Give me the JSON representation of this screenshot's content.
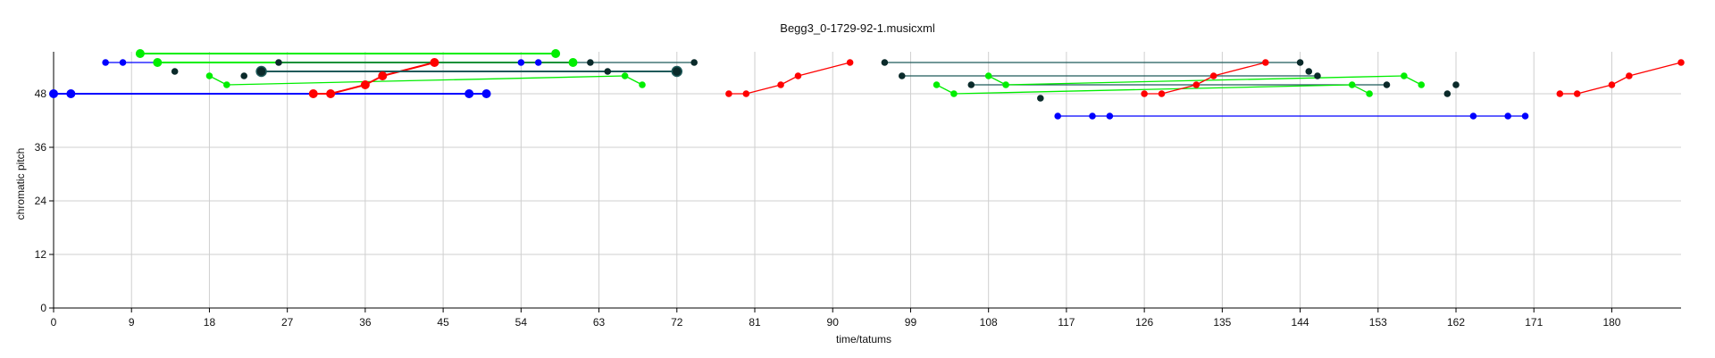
{
  "chart_data": {
    "type": "scatter",
    "title": "Begg3_0-1729-92-1.musicxml",
    "xlabel": "time/tatums",
    "ylabel": "chromatic pitch",
    "xlim": [
      0,
      188
    ],
    "ylim": [
      0,
      57
    ],
    "xticks": [
      "0",
      "9",
      "18",
      "27",
      "36",
      "45",
      "54",
      "63",
      "72",
      "81",
      "90",
      "99",
      "108",
      "117",
      "126",
      "135",
      "144",
      "153",
      "162",
      "171",
      "180"
    ],
    "yticks": [
      "0",
      "12",
      "24",
      "36",
      "48"
    ],
    "grid": true,
    "colors": {
      "blue": "#0000ff",
      "green": "#00ee00",
      "red": "#ff0000",
      "dark": "#0a2a2a",
      "teal": "#1f5a5a"
    },
    "series": [
      {
        "color": "blue",
        "points": [
          [
            0,
            48,
            1.5
          ],
          [
            2,
            48,
            1.5
          ],
          [
            48,
            48,
            1.5
          ],
          [
            50,
            48,
            1.5
          ]
        ]
      },
      {
        "color": "blue",
        "points": [
          [
            6,
            55,
            1
          ],
          [
            8,
            55,
            1
          ],
          [
            54,
            55,
            1
          ],
          [
            56,
            55,
            1
          ]
        ]
      },
      {
        "color": "green",
        "points": [
          [
            10,
            57,
            1.5
          ],
          [
            12,
            55,
            1.5
          ],
          [
            58,
            57,
            1.5
          ],
          [
            60,
            55,
            1.5
          ]
        ]
      },
      {
        "color": "green",
        "points": [
          [
            18,
            52,
            1
          ],
          [
            20,
            50,
            1
          ],
          [
            66,
            52,
            1
          ],
          [
            68,
            50,
            1
          ]
        ]
      },
      {
        "color": "red",
        "points": [
          [
            30,
            48,
            1.5
          ],
          [
            32,
            48,
            1.5
          ],
          [
            36,
            50,
            1.5
          ],
          [
            38,
            52,
            1.5
          ],
          [
            44,
            55,
            1.5
          ]
        ]
      },
      {
        "color": "dark",
        "points": [
          [
            14,
            53,
            1
          ],
          [
            22,
            52,
            1
          ],
          [
            26,
            55,
            1
          ],
          [
            62,
            55,
            1
          ],
          [
            64,
            53,
            1
          ],
          [
            74,
            55,
            1
          ]
        ]
      },
      {
        "color": "dark",
        "points": [
          [
            24,
            53,
            1.7
          ],
          [
            72,
            53,
            1.7
          ]
        ]
      },
      {
        "color": "red",
        "points": [
          [
            78,
            48,
            1
          ],
          [
            80,
            48,
            1
          ],
          [
            84,
            50,
            1
          ],
          [
            86,
            52,
            1
          ],
          [
            92,
            55,
            1
          ]
        ]
      },
      {
        "color": "dark",
        "points": [
          [
            96,
            55,
            1
          ],
          [
            144,
            55,
            1
          ],
          [
            98,
            52,
            1
          ],
          [
            146,
            52,
            1
          ]
        ]
      },
      {
        "color": "dark",
        "points": [
          [
            106,
            50,
            1
          ],
          [
            154,
            50,
            1
          ],
          [
            114,
            47,
            1
          ],
          [
            145,
            53,
            1
          ],
          [
            161,
            48,
            1
          ],
          [
            162,
            50,
            1
          ]
        ]
      },
      {
        "color": "green",
        "points": [
          [
            102,
            50,
            1
          ],
          [
            104,
            48,
            1
          ],
          [
            150,
            50,
            1
          ],
          [
            152,
            48,
            1
          ]
        ]
      },
      {
        "color": "green",
        "points": [
          [
            108,
            52,
            1
          ],
          [
            110,
            50,
            1
          ],
          [
            156,
            52,
            1
          ],
          [
            158,
            50,
            1
          ]
        ]
      },
      {
        "color": "red",
        "points": [
          [
            126,
            48,
            1
          ],
          [
            128,
            48,
            1
          ],
          [
            132,
            50,
            1
          ],
          [
            134,
            52,
            1
          ],
          [
            140,
            55,
            1
          ]
        ]
      },
      {
        "color": "blue",
        "points": [
          [
            116,
            43,
            1
          ],
          [
            120,
            43,
            1
          ],
          [
            122,
            43,
            1
          ],
          [
            164,
            43,
            1
          ],
          [
            168,
            43,
            1
          ],
          [
            170,
            43,
            1
          ]
        ]
      },
      {
        "color": "red",
        "points": [
          [
            174,
            48,
            1
          ],
          [
            176,
            48,
            1
          ],
          [
            180,
            50,
            1
          ],
          [
            182,
            52,
            1
          ],
          [
            188,
            55,
            1
          ]
        ]
      }
    ],
    "segments": [
      {
        "color": "blue",
        "width": 1.5,
        "from": [
          0,
          48
        ],
        "to": [
          50,
          48
        ]
      },
      {
        "color": "blue",
        "width": 1,
        "from": [
          6,
          55
        ],
        "to": [
          56,
          55
        ]
      },
      {
        "color": "green",
        "width": 1.5,
        "from": [
          10,
          57
        ],
        "to": [
          58,
          57
        ]
      },
      {
        "color": "green",
        "width": 1.5,
        "from": [
          12,
          55
        ],
        "to": [
          60,
          55
        ]
      },
      {
        "color": "green",
        "width": 1,
        "from": [
          18,
          52
        ],
        "to": [
          20,
          50
        ]
      },
      {
        "color": "green",
        "width": 1,
        "from": [
          20,
          50
        ],
        "to": [
          66,
          52
        ]
      },
      {
        "color": "green",
        "width": 1,
        "from": [
          66,
          52
        ],
        "to": [
          68,
          50
        ]
      },
      {
        "color": "red",
        "width": 1.5,
        "from": [
          30,
          48
        ],
        "to": [
          32,
          48
        ]
      },
      {
        "color": "red",
        "width": 1.5,
        "from": [
          32,
          48
        ],
        "to": [
          36,
          50
        ]
      },
      {
        "color": "red",
        "width": 1.5,
        "from": [
          36,
          50
        ],
        "to": [
          38,
          52
        ]
      },
      {
        "color": "red",
        "width": 1.5,
        "from": [
          38,
          52
        ],
        "to": [
          44,
          55
        ]
      },
      {
        "color": "teal",
        "width": 1,
        "from": [
          26,
          55
        ],
        "to": [
          74,
          55
        ]
      },
      {
        "color": "teal",
        "width": 1.5,
        "from": [
          24,
          53
        ],
        "to": [
          72,
          53
        ]
      },
      {
        "color": "red",
        "width": 1,
        "from": [
          78,
          48
        ],
        "to": [
          80,
          48
        ]
      },
      {
        "color": "red",
        "width": 1,
        "from": [
          80,
          48
        ],
        "to": [
          84,
          50
        ]
      },
      {
        "color": "red",
        "width": 1,
        "from": [
          84,
          50
        ],
        "to": [
          86,
          52
        ]
      },
      {
        "color": "red",
        "width": 1,
        "from": [
          86,
          52
        ],
        "to": [
          92,
          55
        ]
      },
      {
        "color": "teal",
        "width": 1,
        "from": [
          96,
          55
        ],
        "to": [
          144,
          55
        ]
      },
      {
        "color": "teal",
        "width": 1,
        "from": [
          98,
          52
        ],
        "to": [
          146,
          52
        ]
      },
      {
        "color": "teal",
        "width": 1,
        "from": [
          106,
          50
        ],
        "to": [
          154,
          50
        ]
      },
      {
        "color": "green",
        "width": 1,
        "from": [
          102,
          50
        ],
        "to": [
          104,
          48
        ]
      },
      {
        "color": "green",
        "width": 1,
        "from": [
          104,
          48
        ],
        "to": [
          150,
          50
        ]
      },
      {
        "color": "green",
        "width": 1,
        "from": [
          150,
          50
        ],
        "to": [
          152,
          48
        ]
      },
      {
        "color": "green",
        "width": 1,
        "from": [
          108,
          52
        ],
        "to": [
          110,
          50
        ]
      },
      {
        "color": "green",
        "width": 1,
        "from": [
          110,
          50
        ],
        "to": [
          156,
          52
        ]
      },
      {
        "color": "green",
        "width": 1,
        "from": [
          156,
          52
        ],
        "to": [
          158,
          50
        ]
      },
      {
        "color": "red",
        "width": 1,
        "from": [
          126,
          48
        ],
        "to": [
          128,
          48
        ]
      },
      {
        "color": "red",
        "width": 1,
        "from": [
          128,
          48
        ],
        "to": [
          132,
          50
        ]
      },
      {
        "color": "red",
        "width": 1,
        "from": [
          132,
          50
        ],
        "to": [
          134,
          52
        ]
      },
      {
        "color": "red",
        "width": 1,
        "from": [
          134,
          52
        ],
        "to": [
          140,
          55
        ]
      },
      {
        "color": "blue",
        "width": 1,
        "from": [
          116,
          43
        ],
        "to": [
          170,
          43
        ]
      },
      {
        "color": "red",
        "width": 1,
        "from": [
          174,
          48
        ],
        "to": [
          176,
          48
        ]
      },
      {
        "color": "red",
        "width": 1,
        "from": [
          176,
          48
        ],
        "to": [
          180,
          50
        ]
      },
      {
        "color": "red",
        "width": 1,
        "from": [
          180,
          50
        ],
        "to": [
          182,
          52
        ]
      },
      {
        "color": "red",
        "width": 1,
        "from": [
          182,
          52
        ],
        "to": [
          188,
          55
        ]
      }
    ]
  }
}
